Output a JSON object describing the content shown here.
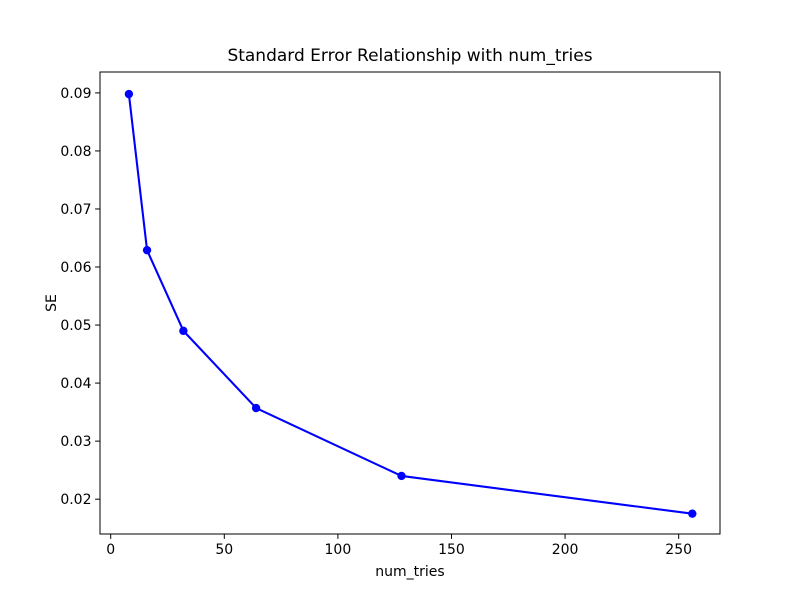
{
  "figure": {
    "background": "#ffffff"
  },
  "chart_data": {
    "type": "line",
    "title": "Standard Error Relationship with num_tries",
    "xlabel": "num_tries",
    "ylabel": "SE",
    "x": [
      8,
      16,
      32,
      64,
      128,
      256
    ],
    "y": [
      0.0898,
      0.0629,
      0.049,
      0.0357,
      0.024,
      0.0175
    ],
    "xticks": [
      0,
      50,
      100,
      150,
      200,
      250
    ],
    "xtick_labels": [
      "0",
      "50",
      "100",
      "150",
      "200",
      "250"
    ],
    "yticks": [
      0.02,
      0.03,
      0.04,
      0.05,
      0.06,
      0.07,
      0.08,
      0.09
    ],
    "ytick_labels": [
      "0.02",
      "0.03",
      "0.04",
      "0.05",
      "0.06",
      "0.07",
      "0.08",
      "0.09"
    ],
    "xlim": [
      -4.71,
      268.19
    ],
    "ylim": [
      0.014,
      0.0936
    ],
    "grid": false,
    "legend": false,
    "line_color": "#0000ff",
    "marker": "circle",
    "marker_color": "#0000ff",
    "axis_color": "#000000",
    "text_color": "#000000"
  }
}
